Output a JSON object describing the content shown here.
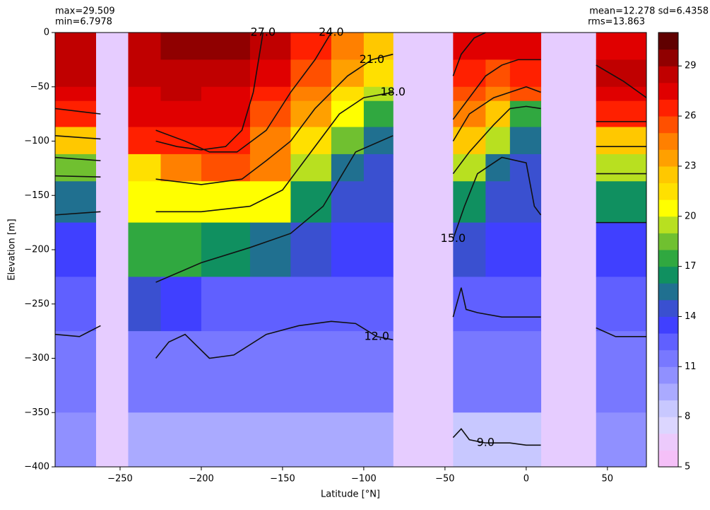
{
  "chart_data": {
    "type": "heatmap",
    "stats_left": [
      "max=29.509",
      "min=6.7978"
    ],
    "stats_right": [
      "mean=12.278 sd=6.4358",
      "rms=13.863"
    ],
    "xlabel": "Latitude [°N]",
    "ylabel": "Elevation [m]",
    "xlim": [
      -290,
      74
    ],
    "ylim": [
      -400,
      0
    ],
    "xticks": [
      {
        "value": -250,
        "label": "−250"
      },
      {
        "value": -200,
        "label": "−200"
      },
      {
        "value": -150,
        "label": "−150"
      },
      {
        "value": -100,
        "label": "−100"
      },
      {
        "value": -50,
        "label": "−50"
      },
      0,
      50
    ],
    "yticks": [
      0,
      {
        "value": -50,
        "label": "−50"
      },
      {
        "value": -100,
        "label": "−100"
      },
      {
        "value": -150,
        "label": "−150"
      },
      {
        "value": -200,
        "label": "−200"
      },
      {
        "value": -250,
        "label": "−250"
      },
      {
        "value": -300,
        "label": "−300"
      },
      {
        "value": -350,
        "label": "−350"
      },
      {
        "value": -400,
        "label": "−400"
      }
    ],
    "x_edges": [
      -290,
      -265,
      -245,
      -225,
      -200,
      -170,
      -145,
      -120,
      -100,
      -82,
      -45,
      -25,
      -10,
      9,
      43,
      74
    ],
    "y_edges": [
      0,
      -25,
      -50,
      -63,
      -87,
      -112,
      -137,
      -175,
      -225,
      -275,
      -350,
      -400
    ],
    "values": [
      [
        28.5,
        null,
        28.5,
        29.5,
        29.5,
        28.5,
        26.5,
        24.5,
        22.5,
        null,
        27.5,
        27.5,
        27.5,
        null,
        27.5
      ],
      [
        28.5,
        null,
        28.5,
        28.5,
        28.5,
        27.5,
        25.5,
        23.5,
        21.5,
        null,
        26.5,
        25.5,
        26.5,
        null,
        28.5
      ],
      [
        27.5,
        null,
        27.5,
        28.5,
        27.5,
        26.5,
        24.5,
        21.5,
        19.5,
        null,
        25.5,
        24.5,
        25.5,
        null,
        27.5
      ],
      [
        26.5,
        null,
        27.5,
        27.5,
        27.5,
        25.5,
        23.5,
        20.5,
        17.5,
        null,
        24.5,
        22.5,
        17.5,
        null,
        26.5
      ],
      [
        22.5,
        null,
        26.5,
        26.5,
        26.5,
        24.5,
        21.5,
        18.5,
        15.5,
        null,
        22.5,
        19.5,
        15.5,
        null,
        22.5
      ],
      [
        18.5,
        null,
        21.5,
        24.5,
        25.5,
        24.5,
        19.5,
        15.5,
        14.5,
        null,
        19.5,
        15.5,
        14.5,
        null,
        19.5
      ],
      [
        15.5,
        null,
        20.5,
        20.5,
        20.5,
        20.5,
        16.5,
        14.5,
        14.5,
        null,
        16.5,
        14.5,
        14.5,
        null,
        16.5
      ],
      [
        13.5,
        null,
        17.5,
        17.5,
        16.5,
        15.5,
        14.5,
        13.5,
        13.5,
        null,
        14.5,
        13.5,
        13.5,
        null,
        13.5
      ],
      [
        12.5,
        null,
        14.5,
        13.5,
        12.5,
        12.5,
        12.5,
        12.5,
        12.5,
        null,
        12.5,
        12.5,
        12.5,
        null,
        12.5
      ],
      [
        11.5,
        null,
        11.5,
        11.5,
        11.5,
        11.5,
        11.5,
        11.5,
        11.5,
        null,
        11.5,
        11.5,
        11.5,
        null,
        11.5
      ],
      [
        10.5,
        null,
        9.5,
        9.5,
        9.5,
        9.5,
        9.5,
        9.5,
        9.5,
        null,
        8.5,
        8.5,
        8.5,
        null,
        10.5
      ]
    ],
    "missing_color": "#e6ccff",
    "clim": [
      5,
      31
    ],
    "colors": [
      "#f5c0f8",
      "#eccafc",
      "#dcd6ff",
      "#c8c8ff",
      "#aaaaff",
      "#9090ff",
      "#7878ff",
      "#6060ff",
      "#4040ff",
      "#3a50d0",
      "#207090",
      "#109060",
      "#30a840",
      "#70c030",
      "#b8e020",
      "#ffff00",
      "#ffe000",
      "#ffc800",
      "#ffa000",
      "#ff8000",
      "#ff5000",
      "#ff2000",
      "#e00000",
      "#c00000",
      "#900000",
      "#600000"
    ],
    "cticks": [
      5,
      8,
      11,
      14,
      17,
      20,
      23,
      26,
      29
    ],
    "contours": [
      {
        "label": "12.0",
        "x": [
          -290,
          -275,
          -262,
          null,
          -228,
          -220,
          -210,
          -195,
          -180,
          -160,
          -140,
          -120,
          -105,
          -92,
          -82,
          null,
          -45,
          -40,
          -37,
          -30,
          -15,
          0,
          9,
          null,
          43,
          55,
          74
        ],
        "y": [
          -278,
          -280,
          -270,
          null,
          -300,
          -285,
          -278,
          -300,
          -297,
          -278,
          -270,
          -266,
          -268,
          -280,
          -283,
          null,
          -262,
          -235,
          -255,
          -258,
          -262,
          -262,
          -262,
          null,
          -272,
          -280,
          -280
        ]
      },
      {
        "label": "15.0",
        "x": [
          -290,
          -262,
          null,
          -228,
          -200,
          -170,
          -145,
          -125,
          -105,
          -82,
          null,
          -45,
          -38,
          -30,
          -15,
          0,
          5,
          9,
          null,
          43,
          74
        ],
        "y": [
          -168,
          -165,
          null,
          -230,
          -212,
          -198,
          -185,
          -160,
          -110,
          -95,
          null,
          -190,
          -160,
          -130,
          -115,
          -120,
          -160,
          -168,
          null,
          -175,
          -175
        ]
      },
      {
        "label": "18.0",
        "x": [
          -290,
          -262,
          null,
          -228,
          -200,
          -170,
          -150,
          -135,
          -115,
          -100,
          -82,
          null,
          -45,
          -35,
          -20,
          -10,
          0,
          9,
          null,
          43,
          74
        ],
        "y": [
          -132,
          -133,
          null,
          -165,
          -165,
          -160,
          -145,
          -115,
          -75,
          -60,
          -55,
          null,
          -130,
          -110,
          -85,
          -70,
          -68,
          -70,
          null,
          -130,
          -130
        ]
      },
      {
        "label": "21.0",
        "x": [
          -290,
          -262,
          null,
          -228,
          -200,
          -175,
          -160,
          -145,
          -130,
          -110,
          -95,
          -82,
          null,
          -45,
          -35,
          -20,
          0,
          9,
          null,
          43,
          74
        ],
        "y": [
          -115,
          -118,
          null,
          -135,
          -140,
          -135,
          -118,
          -100,
          -70,
          -40,
          -25,
          -20,
          null,
          -100,
          -75,
          -60,
          -50,
          -55,
          null,
          -105,
          -105
        ]
      },
      {
        "label": "24.0",
        "x": [
          -290,
          -262,
          null,
          -228,
          -210,
          -195,
          -178,
          -160,
          -145,
          -130,
          -120,
          null,
          -45,
          -35,
          -25,
          -15,
          -5,
          9,
          null,
          43,
          74
        ],
        "y": [
          -95,
          -98,
          null,
          -90,
          -100,
          -110,
          -110,
          -90,
          -55,
          -25,
          0,
          null,
          -80,
          -60,
          -40,
          -30,
          -25,
          -25,
          null,
          -82,
          -82
        ]
      },
      {
        "label": "27.0",
        "x": [
          -290,
          -262,
          null,
          -228,
          -215,
          -200,
          -185,
          -175,
          -168,
          -162,
          null,
          -45,
          -40,
          -32,
          -25,
          null,
          43,
          60,
          74
        ],
        "y": [
          -70,
          -75,
          null,
          -100,
          -105,
          -108,
          -105,
          -90,
          -55,
          0,
          null,
          -40,
          -20,
          -5,
          0,
          null,
          -30,
          -45,
          -60
        ]
      },
      {
        "label": "9.0",
        "x": [
          -45,
          -40,
          -35,
          -25,
          -10,
          0,
          9
        ],
        "y": [
          -373,
          -365,
          -375,
          -378,
          -378,
          -380,
          -380
        ]
      }
    ]
  }
}
